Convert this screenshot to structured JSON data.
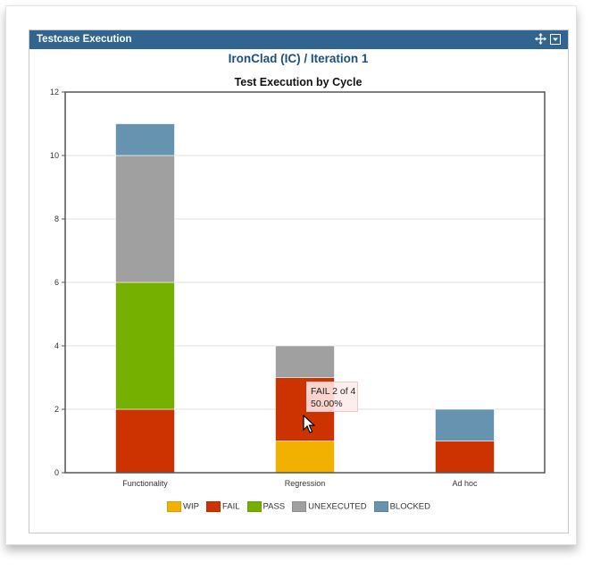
{
  "gadget": {
    "title": "Testcase Execution",
    "icons": [
      "move-icon",
      "dropdown-icon"
    ]
  },
  "project_title": "IronClad (IC) / Iteration 1",
  "tooltip": {
    "line1": "FAIL 2 of 4",
    "line2": "50.00%"
  },
  "chart_data": {
    "type": "bar",
    "stacked": true,
    "title": "Test Execution by Cycle",
    "categories": [
      "Functionality",
      "Regression",
      "Ad hoc"
    ],
    "series": [
      {
        "name": "WIP",
        "color": "#f2b100",
        "values": [
          0,
          1,
          0
        ]
      },
      {
        "name": "FAIL",
        "color": "#cc3300",
        "values": [
          2,
          2,
          1
        ]
      },
      {
        "name": "PASS",
        "color": "#75b000",
        "values": [
          4,
          0,
          0
        ]
      },
      {
        "name": "UNEXECUTED",
        "color": "#a0a0a0",
        "values": [
          4,
          1,
          0
        ]
      },
      {
        "name": "BLOCKED",
        "color": "#6693b0",
        "values": [
          1,
          0,
          1
        ]
      }
    ],
    "ylim": [
      0,
      12
    ],
    "yticks": [
      0,
      2,
      4,
      6,
      8,
      10,
      12
    ],
    "grid": true,
    "legend": "bottom"
  }
}
